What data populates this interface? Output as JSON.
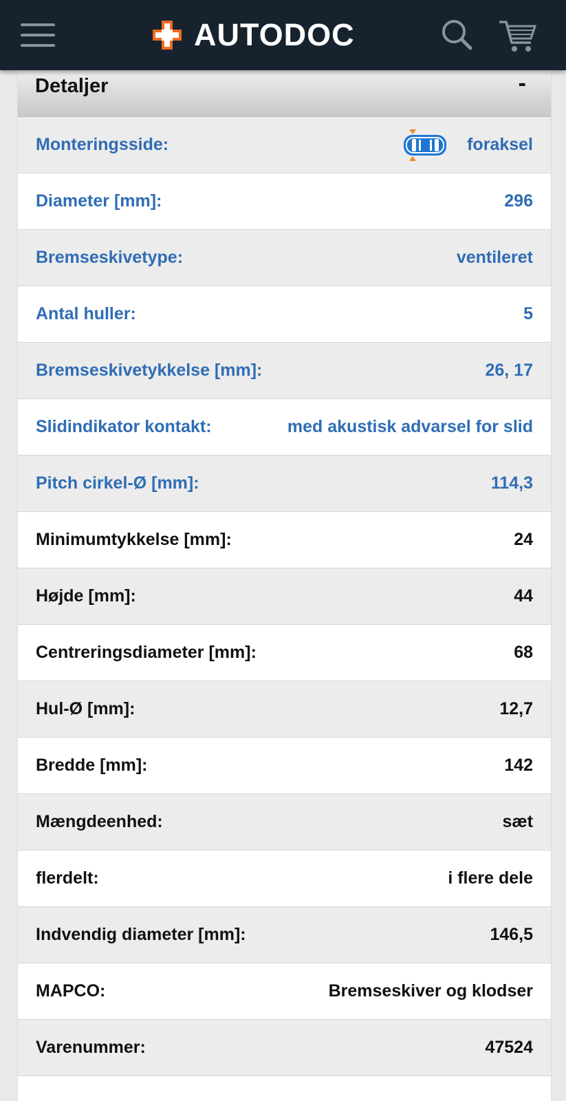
{
  "header": {
    "brand": "AUTODOC",
    "menu_icon": "hamburger-menu-icon",
    "search_icon": "search-icon",
    "cart_icon": "shopping-cart-icon",
    "colors": {
      "background": "#16232e",
      "brand_orange": "#f26a21",
      "icon_grey": "#8a949c"
    }
  },
  "details": {
    "title": "Detaljer",
    "toggle": "-",
    "rows": [
      {
        "label": "Monteringsside:",
        "value": "foraksel",
        "link": true,
        "icon": "front-axle-car-icon"
      },
      {
        "label": "Diameter [mm]:",
        "value": "296",
        "link": true
      },
      {
        "label": "Bremseskivetype:",
        "value": "ventileret",
        "link": true
      },
      {
        "label": "Antal huller:",
        "value": "5",
        "link": true
      },
      {
        "label": "Bremseskivetykkelse [mm]:",
        "value": "26, 17",
        "link": true
      },
      {
        "label": "Slidindikator kontakt:",
        "value": "med akustisk advarsel for slid",
        "link": true
      },
      {
        "label": "Pitch cirkel-Ø [mm]:",
        "value": "114,3",
        "link": true
      },
      {
        "label": "Minimumtykkelse [mm]:",
        "value": "24",
        "link": false
      },
      {
        "label": "Højde [mm]:",
        "value": "44",
        "link": false
      },
      {
        "label": "Centreringsdiameter [mm]:",
        "value": "68",
        "link": false
      },
      {
        "label": "Hul-Ø [mm]:",
        "value": "12,7",
        "link": false
      },
      {
        "label": "Bredde [mm]:",
        "value": "142",
        "link": false
      },
      {
        "label": "Mængdeenhed:",
        "value": "sæt",
        "link": false
      },
      {
        "label": "flerdelt:",
        "value": "i flere dele",
        "link": false
      },
      {
        "label": "Indvendig diameter [mm]:",
        "value": "146,5",
        "link": false
      },
      {
        "label": "MAPCO:",
        "value": "Bremseskiver og klodser",
        "link": false
      },
      {
        "label": "Varenummer:",
        "value": "47524",
        "link": false
      },
      {
        "label": "",
        "value": "",
        "link": false
      }
    ],
    "colors": {
      "link_text": "#2f6db5",
      "plain_text": "#111111",
      "row_alt": "#ececec"
    }
  }
}
